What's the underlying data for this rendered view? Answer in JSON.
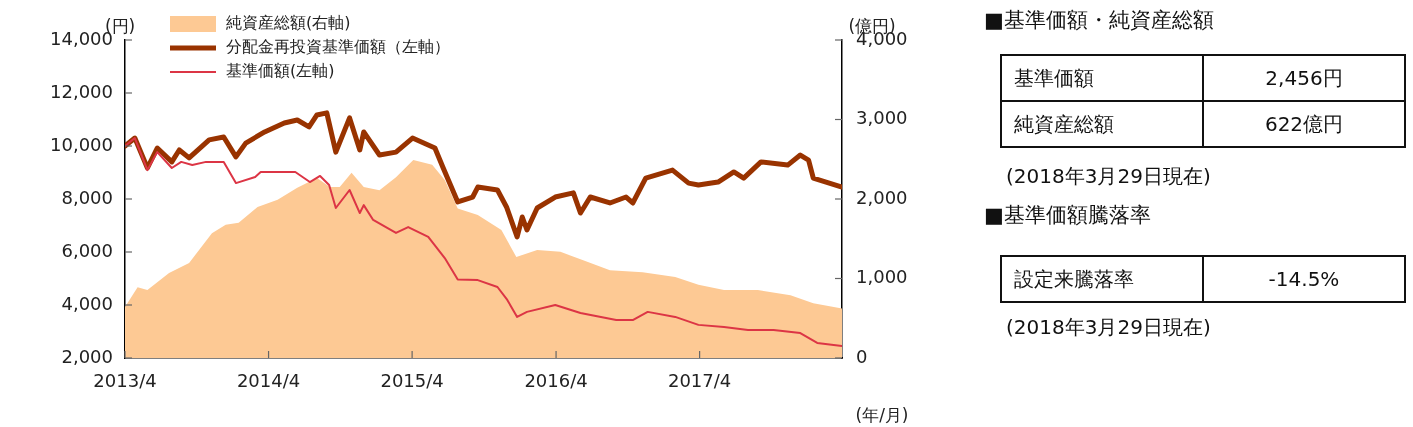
{
  "chart_data": [
    {
      "type": "line",
      "legend": "top left",
      "grid": false,
      "xlabel": "(年/月)",
      "ylabel": "(円)",
      "y2label": "(億円)",
      "xlim": [
        "2013-04-01",
        "2018-03-29"
      ],
      "xticks": [
        {
          "value": "2013-04",
          "label": "2013/4"
        },
        {
          "value": "2014-04",
          "label": "2014/4"
        },
        {
          "value": "2015-04",
          "label": "2015/4"
        },
        {
          "value": "2016-04",
          "label": "2016/4"
        },
        {
          "value": "2017-04",
          "label": "2017/4"
        }
      ],
      "ylim": [
        2000,
        14000
      ],
      "yticks": [
        {
          "value": 2000,
          "label": "2,000"
        },
        {
          "value": 4000,
          "label": "4,000"
        },
        {
          "value": 6000,
          "label": "6,000"
        },
        {
          "value": 8000,
          "label": "8,000"
        },
        {
          "value": 10000,
          "label": "10,000"
        },
        {
          "value": 12000,
          "label": "12,000"
        },
        {
          "value": 14000,
          "label": "14,000"
        }
      ],
      "y2lim": [
        0,
        4000
      ],
      "y2ticks": [
        0,
        {
          "value": 1000,
          "label": "1,000"
        },
        {
          "value": 2000,
          "label": "2,000"
        },
        {
          "value": 3000,
          "label": "3,000"
        },
        {
          "value": 4000,
          "label": "4,000"
        }
      ],
      "series": [
        {
          "name": "純資産総額(右軸)",
          "type": "area",
          "axis": "y2",
          "color": "#fdc994",
          "x": [
            "2013-04-01",
            "2013-05-03",
            "2013-05-28",
            "2013-07-22",
            "2013-09-11",
            "2013-11-08",
            "2013-12-13",
            "2014-01-15",
            "2014-03-04",
            "2014-04-24",
            "2014-06-13",
            "2014-08-02",
            "2014-09-04",
            "2014-09-29",
            "2014-10-29",
            "2014-11-29",
            "2015-01-08",
            "2015-02-19",
            "2015-04-04",
            "2015-05-22",
            "2015-06-23",
            "2015-07-26",
            "2015-09-15",
            "2015-11-14",
            "2015-12-22",
            "2016-02-13",
            "2016-04-12",
            "2016-06-09",
            "2016-08-16",
            "2016-11-07",
            "2017-01-29",
            "2017-03-29",
            "2017-06-02",
            "2017-08-27",
            "2017-11-18",
            "2018-01-15",
            "2018-03-29"
          ],
          "values": [
            640,
            890,
            855,
            1070,
            1195,
            1570,
            1675,
            1700,
            1900,
            1990,
            2140,
            2265,
            2150,
            2150,
            2330,
            2150,
            2110,
            2275,
            2490,
            2430,
            2240,
            1880,
            1800,
            1610,
            1270,
            1360,
            1335,
            1230,
            1105,
            1080,
            1020,
            920,
            855,
            855,
            790,
            690,
            622
          ]
        },
        {
          "name": "分配金再投資基準価額（左軸）",
          "type": "line",
          "color": "#993300",
          "x": [
            "2013-04-01",
            "2013-04-26",
            "2013-05-28",
            "2013-06-22",
            "2013-07-29",
            "2013-08-17",
            "2013-09-11",
            "2013-11-01",
            "2013-12-08",
            "2014-01-08",
            "2014-02-02",
            "2014-03-22",
            "2014-05-11",
            "2014-06-13",
            "2014-07-13",
            "2014-08-02",
            "2014-08-27",
            "2014-09-19",
            "2014-10-24",
            "2014-11-19",
            "2014-11-29",
            "2015-01-08",
            "2015-02-19",
            "2015-04-02",
            "2015-05-29",
            "2015-06-18",
            "2015-07-26",
            "2015-09-02",
            "2015-09-15",
            "2015-11-04",
            "2015-11-27",
            "2015-12-24",
            "2016-01-06",
            "2016-01-18",
            "2016-02-13",
            "2016-03-30",
            "2016-05-15",
            "2016-06-02",
            "2016-06-27",
            "2016-08-16",
            "2016-09-26",
            "2016-10-13",
            "2016-11-15",
            "2017-01-22",
            "2017-03-04",
            "2017-03-29",
            "2017-05-18",
            "2017-06-27",
            "2017-07-22",
            "2017-09-04",
            "2017-11-11",
            "2017-12-13",
            "2018-01-03",
            "2018-01-15",
            "2018-03-29"
          ],
          "values": [
            10000,
            10300,
            9170,
            9925,
            9400,
            9850,
            9550,
            10230,
            10340,
            9590,
            10110,
            10530,
            10870,
            10980,
            10720,
            11170,
            11250,
            9770,
            11060,
            9850,
            10530,
            9660,
            9770,
            10300,
            9925,
            9210,
            7890,
            8075,
            8450,
            8340,
            7700,
            6570,
            7320,
            6830,
            7660,
            8075,
            8230,
            7470,
            8075,
            7850,
            8075,
            7850,
            8790,
            9090,
            8600,
            8530,
            8640,
            9020,
            8790,
            9400,
            9280,
            9660,
            9470,
            8790,
            8450
          ]
        },
        {
          "name": "基準価額(左軸)",
          "type": "line",
          "color": "#dc3545",
          "x": [
            "2013-04-01",
            "2013-04-26",
            "2013-05-28",
            "2013-06-22",
            "2013-07-29",
            "2013-08-22",
            "2013-09-19",
            "2013-10-24",
            "2013-12-08",
            "2014-01-08",
            "2014-02-26",
            "2014-03-12",
            "2014-06-08",
            "2014-07-15",
            "2014-08-10",
            "2014-09-02",
            "2014-09-19",
            "2014-10-24",
            "2014-11-19",
            "2014-11-29",
            "2014-12-23",
            "2015-02-19",
            "2015-03-22",
            "2015-05-12",
            "2015-06-23",
            "2015-07-26",
            "2015-09-15",
            "2015-11-04",
            "2015-11-29",
            "2015-12-24",
            "2016-01-18",
            "2016-03-30",
            "2016-06-02",
            "2016-09-01",
            "2016-10-13",
            "2016-11-20",
            "2017-01-29",
            "2017-03-29",
            "2017-06-02",
            "2017-08-02",
            "2017-10-06",
            "2017-12-13",
            "2018-01-25",
            "2018-03-29"
          ],
          "values": [
            10000,
            10300,
            9090,
            9770,
            9170,
            9400,
            9280,
            9400,
            9400,
            8600,
            8830,
            9020,
            9020,
            8640,
            8870,
            8530,
            7660,
            8340,
            7470,
            7770,
            7210,
            6720,
            6940,
            6570,
            5770,
            4960,
            4940,
            4680,
            4190,
            3550,
            3740,
            4000,
            3700,
            3430,
            3430,
            3740,
            3550,
            3250,
            3170,
            3060,
            3060,
            2940,
            2570,
            2456
          ]
        }
      ]
    },
    {
      "type": "other",
      "annotations": [
        "■基準価額・純資産総額",
        "基準価額",
        "2,456円",
        "純資産総額",
        "622億円",
        "(2018年3月29日現在)",
        "■基準価額騰落率",
        "設定来騰落率",
        "-14.5%",
        "(2018年3月29日現在)"
      ]
    }
  ]
}
